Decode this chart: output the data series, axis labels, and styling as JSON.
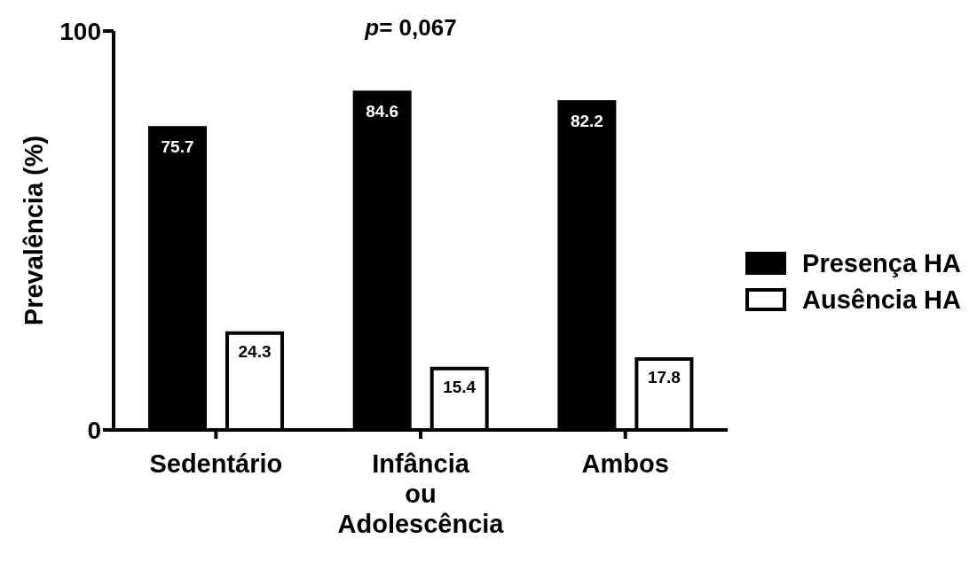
{
  "chart_data": {
    "type": "bar",
    "ylabel": "Prevalência (%)",
    "annotations": [
      "p= 0,067"
    ],
    "categories": [
      "Sedentário",
      "Infância ou Adolescência",
      "Ambos"
    ],
    "series": [
      {
        "name": "Presença HA",
        "color": "#000000",
        "values": [
          75.7,
          84.6,
          82.2
        ]
      },
      {
        "name": "Ausência HA",
        "color": "#ffffff",
        "values": [
          24.3,
          15.4,
          17.8
        ]
      }
    ],
    "ylim": [
      0,
      100
    ],
    "yticks": [
      0,
      100
    ],
    "grid": false,
    "legend": "right",
    "data_labels": true
  }
}
